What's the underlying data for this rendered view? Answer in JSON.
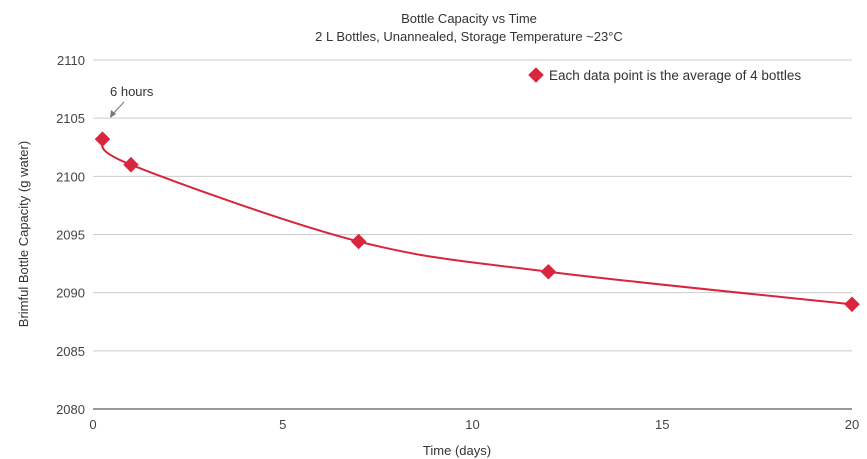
{
  "chart_data": {
    "type": "line",
    "title": "Bottle Capacity vs Time",
    "subtitle": "2 L Bottles, Unannealed, Storage Temperature ~23°C",
    "xlabel": "Time (days)",
    "ylabel": "Brimful Bottle Capacity (g water)",
    "xlim": [
      0,
      20
    ],
    "ylim": [
      2080,
      2110
    ],
    "x_ticks": [
      0,
      5,
      10,
      15,
      20
    ],
    "y_ticks": [
      2080,
      2085,
      2090,
      2095,
      2100,
      2105,
      2110
    ],
    "grid": "horizontal",
    "legend_position": "top-right",
    "legend_label": "Each data point is the average of 4 bottles",
    "annotation": {
      "text": "6 hours",
      "x": 0.25,
      "y": 2103.2
    },
    "series": [
      {
        "marker": "diamond",
        "smooth": true,
        "x": [
          0.25,
          1,
          7,
          12,
          20
        ],
        "y": [
          2103.2,
          2101.0,
          2094.4,
          2091.8,
          2089.0
        ]
      }
    ],
    "colors": {
      "series": "#d7263d",
      "grid": "#cccccc",
      "axis": "#999999"
    }
  }
}
